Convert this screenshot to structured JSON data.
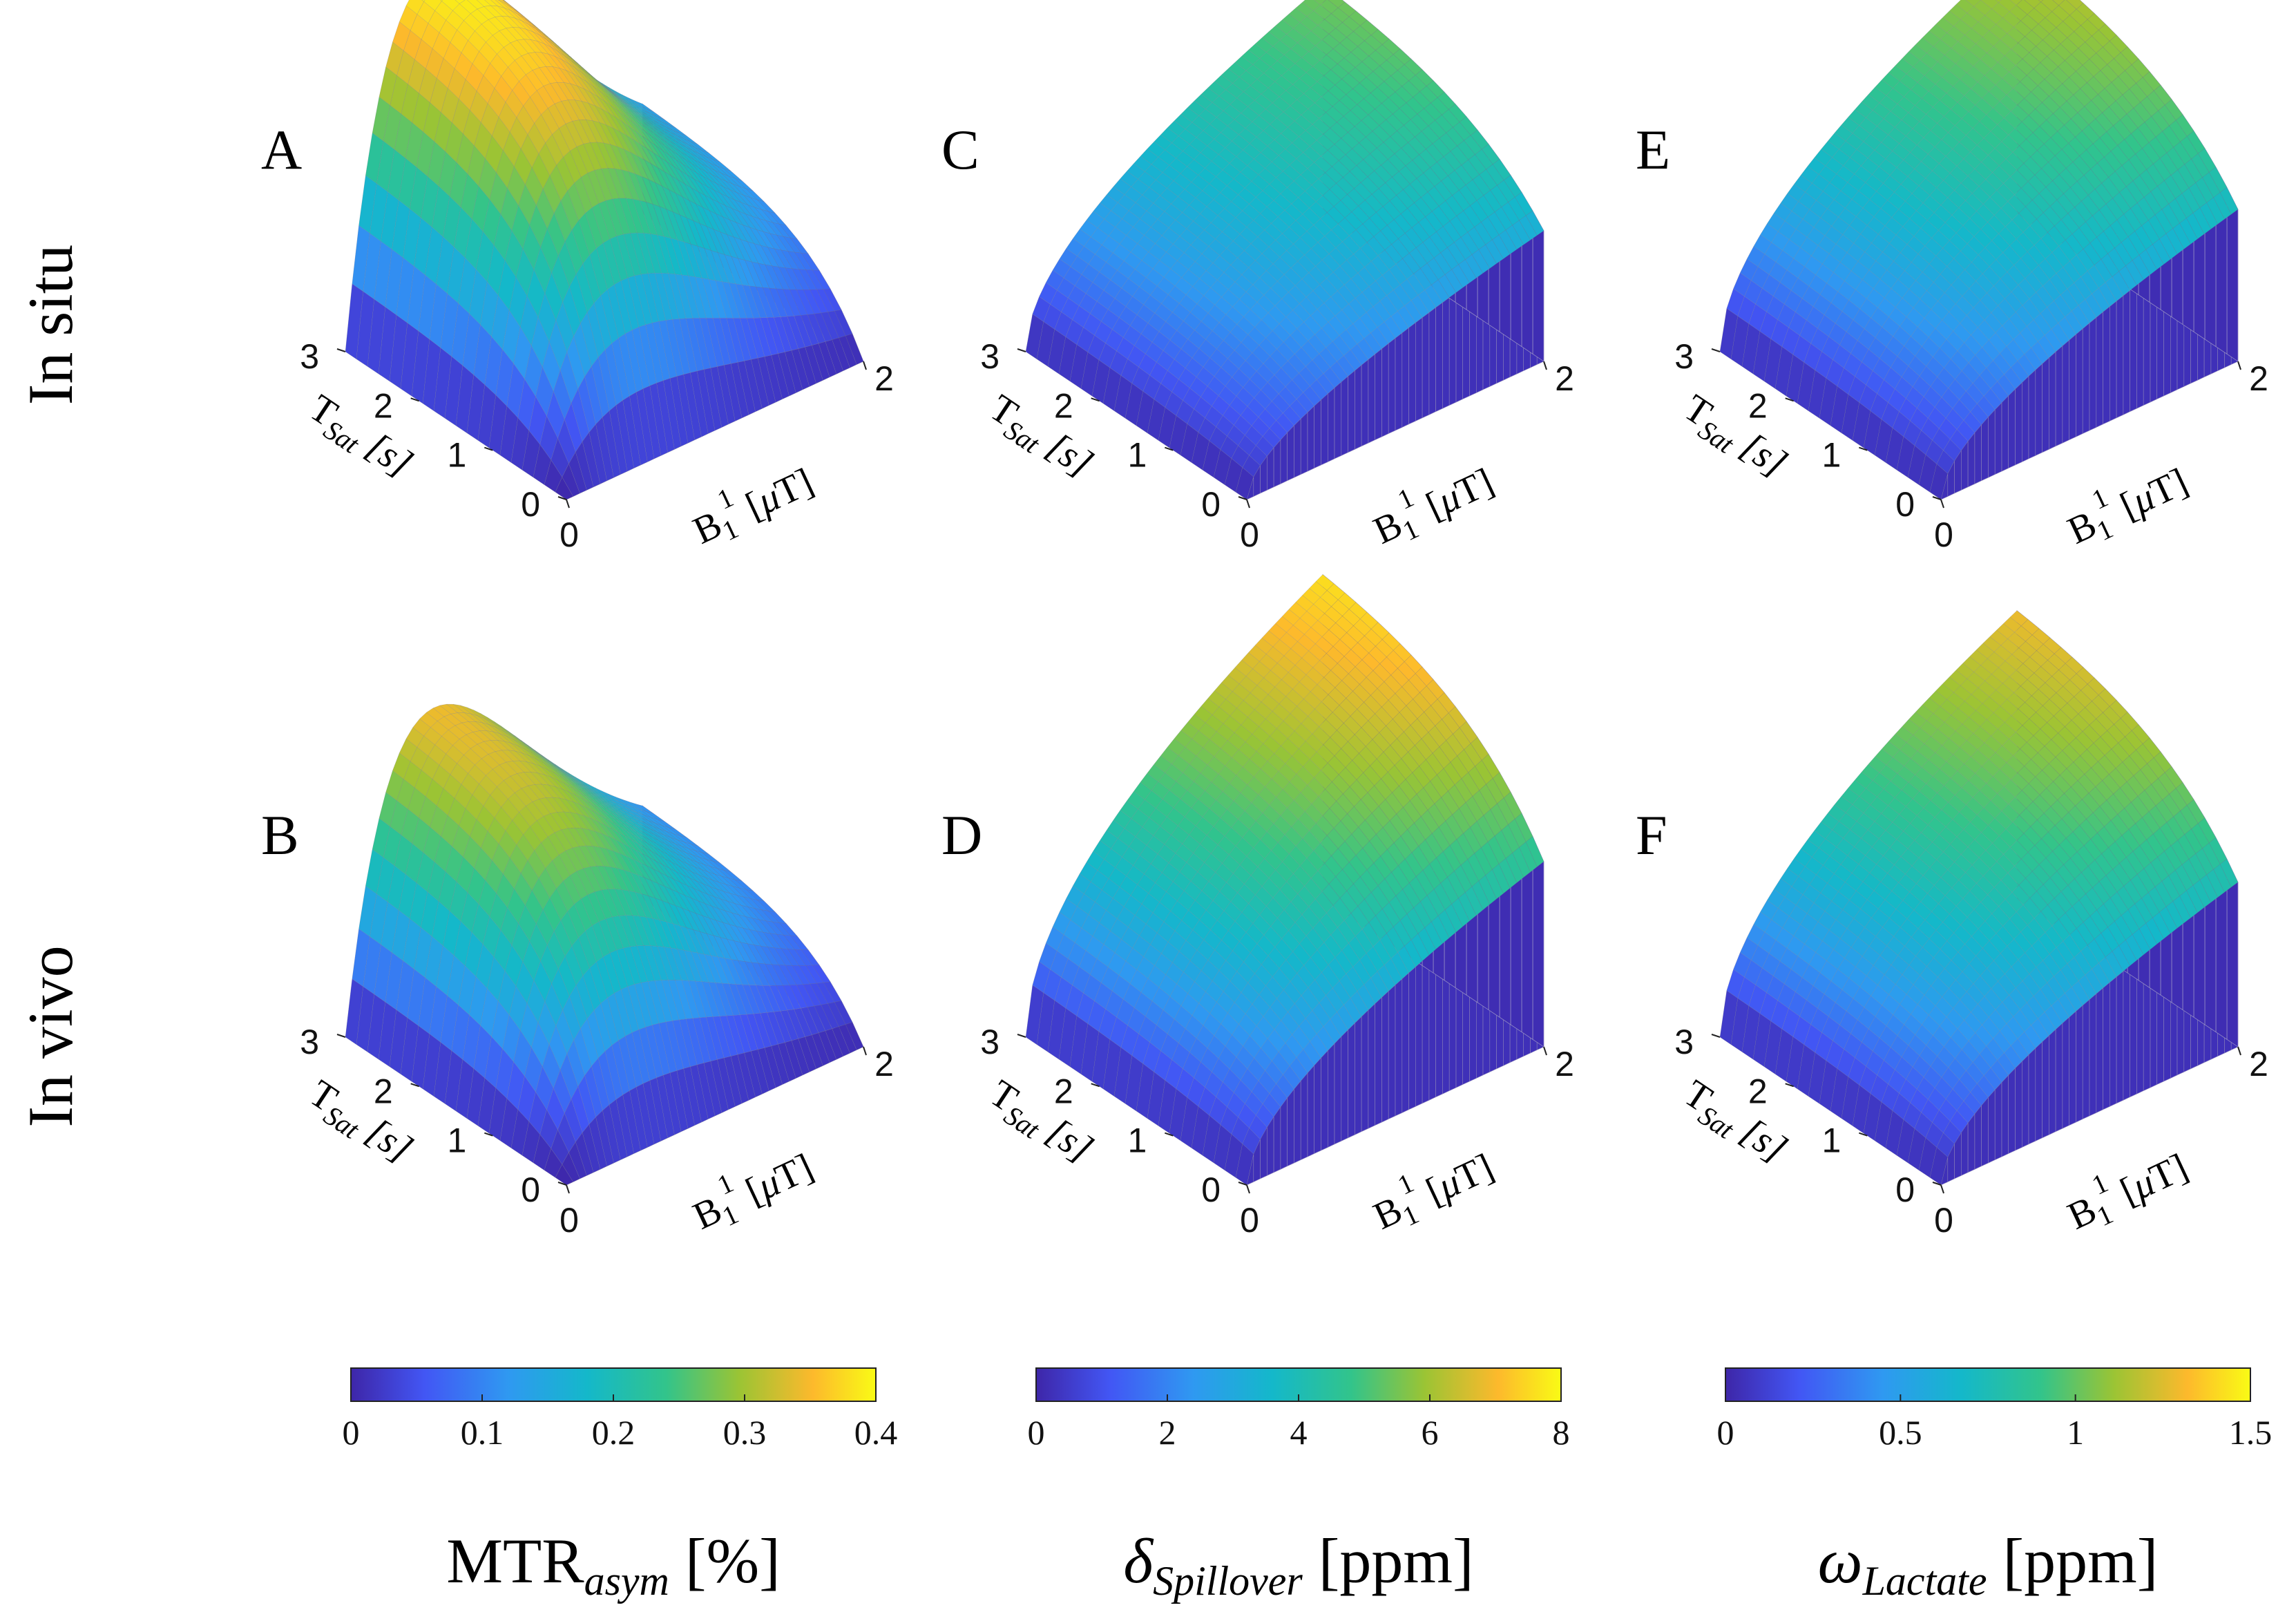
{
  "figure": {
    "row_labels": [
      "In situ",
      "In vivo"
    ],
    "colormap": [
      "#3e26a8",
      "#4256f4",
      "#2f99f1",
      "#14b8ca",
      "#32c48b",
      "#9bc434",
      "#fdb92c",
      "#f9fb15"
    ],
    "axis_x_label": "B₁¹ [μT]",
    "axis_y_label": "T_Sat [s]"
  },
  "chart_data": [
    {
      "type": "surface",
      "panel": "A",
      "row": "In situ",
      "metric": "MTR_asym",
      "shape": "peak",
      "x": {
        "label": "B1 [μT]",
        "range": [
          0,
          2
        ],
        "ticks": [
          "0",
          "2"
        ]
      },
      "y": {
        "label": "T_Sat [s]",
        "range": [
          0,
          3
        ],
        "ticks": [
          "0",
          "1",
          "2",
          "3"
        ]
      },
      "z": {
        "range": [
          0,
          0.4
        ],
        "approx_peak": 0.4,
        "peak_B1": 0.6
      }
    },
    {
      "type": "surface",
      "panel": "B",
      "row": "In vivo",
      "metric": "MTR_asym",
      "shape": "peak",
      "x": {
        "label": "B1 [μT]",
        "range": [
          0,
          2
        ],
        "ticks": [
          "0",
          "2"
        ]
      },
      "y": {
        "label": "T_Sat [s]",
        "range": [
          0,
          3
        ],
        "ticks": [
          "0",
          "1",
          "2",
          "3"
        ]
      },
      "z": {
        "range": [
          0,
          0.4
        ],
        "approx_peak": 0.34,
        "peak_B1": 0.6
      }
    },
    {
      "type": "surface",
      "panel": "C",
      "row": "In situ",
      "metric": "delta_Spillover",
      "shape": "rising",
      "x": {
        "label": "B1 [μT]",
        "range": [
          0,
          2
        ],
        "ticks": [
          "0",
          "2"
        ]
      },
      "y": {
        "label": "T_Sat [s]",
        "range": [
          0,
          3
        ],
        "ticks": [
          "0",
          "1",
          "2",
          "3"
        ]
      },
      "z": {
        "range": [
          0,
          8
        ],
        "approx_peak": 5.5
      }
    },
    {
      "type": "surface",
      "panel": "D",
      "row": "In vivo",
      "metric": "delta_Spillover",
      "shape": "rising",
      "x": {
        "label": "B1 [μT]",
        "range": [
          0,
          2
        ],
        "ticks": [
          "0",
          "2"
        ]
      },
      "y": {
        "label": "T_Sat [s]",
        "range": [
          0,
          3
        ],
        "ticks": [
          "0",
          "1",
          "2",
          "3"
        ]
      },
      "z": {
        "range": [
          0,
          8
        ],
        "approx_peak": 7.8
      }
    },
    {
      "type": "surface",
      "panel": "E",
      "row": "In situ",
      "metric": "omega_Lactate",
      "shape": "rising",
      "x": {
        "label": "B1 [μT]",
        "range": [
          0,
          2
        ],
        "ticks": [
          "0",
          "2"
        ]
      },
      "y": {
        "label": "T_Sat [s]",
        "range": [
          0,
          3
        ],
        "ticks": [
          "0",
          "1",
          "2",
          "3"
        ]
      },
      "z": {
        "range": [
          0,
          1.5
        ],
        "approx_peak": 1.2
      }
    },
    {
      "type": "surface",
      "panel": "F",
      "row": "In vivo",
      "metric": "omega_Lactate",
      "shape": "rising",
      "x": {
        "label": "B1 [μT]",
        "range": [
          0,
          2
        ],
        "ticks": [
          "0",
          "2"
        ]
      },
      "y": {
        "label": "T_Sat [s]",
        "range": [
          0,
          3
        ],
        "ticks": [
          "0",
          "1",
          "2",
          "3"
        ]
      },
      "z": {
        "range": [
          0,
          1.5
        ],
        "approx_peak": 1.3
      }
    }
  ],
  "colorbars": [
    {
      "label_main": "MTR",
      "label_sub": "asym",
      "label_unit": "[%]",
      "ticks": [
        "0",
        "0.1",
        "0.2",
        "0.3",
        "0.4"
      ],
      "range": [
        0,
        0.4
      ]
    },
    {
      "label_main": "δ",
      "label_sub": "Spillover",
      "label_unit": "[ppm]",
      "ticks": [
        "0",
        "2",
        "4",
        "6",
        "8"
      ],
      "range": [
        0,
        8
      ]
    },
    {
      "label_main": "ω",
      "label_sub": "Lactate",
      "label_unit": "[ppm]",
      "ticks": [
        "0",
        "0.5",
        "1",
        "1.5"
      ],
      "range": [
        0,
        1.5
      ]
    }
  ]
}
